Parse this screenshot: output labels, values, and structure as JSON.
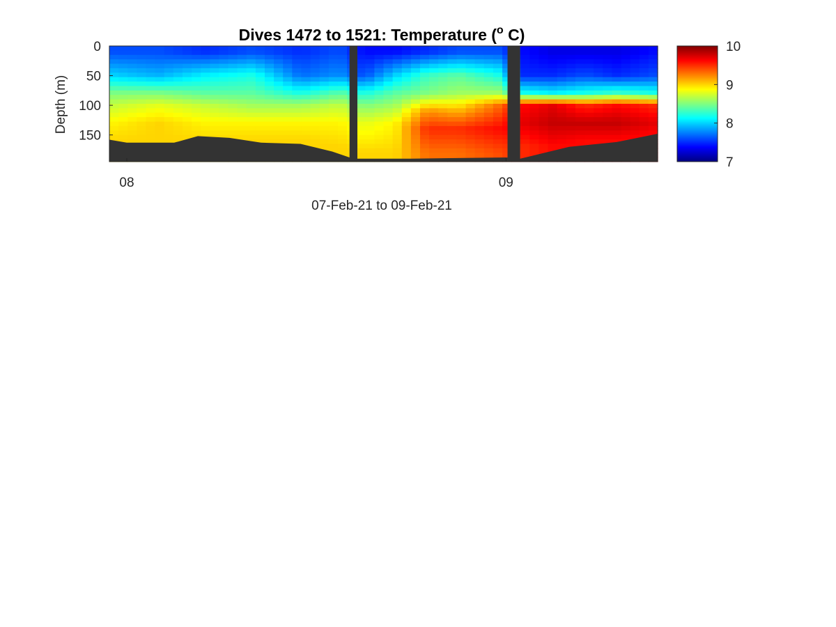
{
  "chart_data": {
    "type": "heatmap",
    "title": "Dives 1472 to 1521: Temperature (",
    "title_superscript": "o",
    "title_end": " C)",
    "xlabel": "07-Feb-21 to 09-Feb-21",
    "ylabel": "Depth (m)",
    "x_unit": "hours since 07-Feb-21 00:00",
    "xlim": [
      22.9,
      57.6
    ],
    "ylim": [
      0,
      195
    ],
    "y_reversed": true,
    "x_ticks": [
      {
        "value": 24,
        "label": "08"
      },
      {
        "value": 48,
        "label": "09"
      }
    ],
    "y_ticks": [
      {
        "value": 0,
        "label": "0"
      },
      {
        "value": 50,
        "label": "50"
      },
      {
        "value": 100,
        "label": "100"
      },
      {
        "value": 150,
        "label": "150"
      }
    ],
    "colorbar": {
      "clim": [
        7,
        10
      ],
      "ticks": [
        {
          "value": 7,
          "label": "7"
        },
        {
          "value": 8,
          "label": "8"
        },
        {
          "value": 9,
          "label": "9"
        },
        {
          "value": 10,
          "label": "10"
        }
      ],
      "colormap": "jet"
    },
    "no_data_color": "#333333",
    "gaps": [
      [
        38.1,
        38.6
      ],
      [
        48.1,
        48.9
      ]
    ],
    "bottom_depth": [
      {
        "x": 22.9,
        "depth": 158
      },
      {
        "x": 24.0,
        "depth": 163
      },
      {
        "x": 27.0,
        "depth": 163
      },
      {
        "x": 28.5,
        "depth": 152
      },
      {
        "x": 30.5,
        "depth": 155
      },
      {
        "x": 32.5,
        "depth": 163
      },
      {
        "x": 35.0,
        "depth": 165
      },
      {
        "x": 37.0,
        "depth": 178
      },
      {
        "x": 38.1,
        "depth": 188
      },
      {
        "x": 38.6,
        "depth": 190
      },
      {
        "x": 42.0,
        "depth": 190
      },
      {
        "x": 48.0,
        "depth": 188
      },
      {
        "x": 48.9,
        "depth": 190
      },
      {
        "x": 50.0,
        "depth": 183
      },
      {
        "x": 52.0,
        "depth": 170
      },
      {
        "x": 55.0,
        "depth": 162
      },
      {
        "x": 57.6,
        "depth": 148
      }
    ],
    "profiles": [
      {
        "x": 23.0,
        "depths": [
          10,
          50,
          80,
          100,
          130,
          160
        ],
        "temps": [
          7.6,
          8.0,
          8.5,
          8.7,
          8.9,
          9.0
        ]
      },
      {
        "x": 26.0,
        "depths": [
          10,
          50,
          80,
          100,
          130,
          160
        ],
        "temps": [
          7.6,
          7.9,
          8.5,
          8.8,
          9.0,
          9.0
        ]
      },
      {
        "x": 29.0,
        "depths": [
          10,
          50,
          80,
          100,
          130,
          160
        ],
        "temps": [
          7.5,
          8.1,
          8.4,
          8.7,
          8.9,
          9.0
        ]
      },
      {
        "x": 32.0,
        "depths": [
          10,
          50,
          80,
          100,
          130,
          160
        ],
        "temps": [
          7.6,
          8.2,
          8.4,
          8.6,
          8.9,
          9.0
        ]
      },
      {
        "x": 35.0,
        "depths": [
          10,
          50,
          80,
          100,
          130,
          160
        ],
        "temps": [
          7.5,
          7.7,
          8.2,
          8.6,
          8.9,
          9.0
        ]
      },
      {
        "x": 37.5,
        "depths": [
          10,
          50,
          80,
          100,
          130,
          170
        ],
        "temps": [
          7.6,
          7.8,
          8.4,
          8.7,
          8.9,
          9.0
        ]
      },
      {
        "x": 39.0,
        "depths": [
          10,
          50,
          80,
          100,
          130,
          180
        ],
        "temps": [
          7.4,
          7.6,
          8.2,
          8.5,
          8.8,
          9.0
        ]
      },
      {
        "x": 41.0,
        "depths": [
          10,
          50,
          80,
          100,
          130,
          180
        ],
        "temps": [
          7.4,
          8.0,
          8.4,
          8.6,
          8.9,
          9.0
        ]
      },
      {
        "x": 43.0,
        "depths": [
          10,
          50,
          80,
          110,
          140,
          180
        ],
        "temps": [
          7.5,
          8.3,
          8.5,
          9.2,
          9.5,
          9.3
        ]
      },
      {
        "x": 45.0,
        "depths": [
          10,
          50,
          80,
          110,
          140,
          180
        ],
        "temps": [
          7.6,
          8.4,
          8.6,
          9.1,
          9.5,
          9.3
        ]
      },
      {
        "x": 47.5,
        "depths": [
          10,
          50,
          80,
          100,
          140,
          180
        ],
        "temps": [
          7.6,
          8.2,
          8.6,
          9.3,
          9.6,
          9.4
        ]
      },
      {
        "x": 49.0,
        "depths": [
          10,
          50,
          80,
          100,
          130,
          170
        ],
        "temps": [
          7.4,
          7.5,
          8.2,
          9.6,
          9.7,
          9.5
        ]
      },
      {
        "x": 51.0,
        "depths": [
          10,
          50,
          80,
          100,
          130,
          170
        ],
        "temps": [
          7.3,
          7.5,
          8.1,
          9.7,
          9.8,
          9.6
        ]
      },
      {
        "x": 53.0,
        "depths": [
          10,
          50,
          80,
          100,
          130,
          160
        ],
        "temps": [
          7.3,
          7.6,
          8.2,
          9.5,
          9.8,
          9.6
        ]
      },
      {
        "x": 55.0,
        "depths": [
          10,
          50,
          80,
          100,
          130,
          160
        ],
        "temps": [
          7.3,
          7.5,
          8.3,
          9.6,
          9.8,
          9.6
        ]
      },
      {
        "x": 57.5,
        "depths": [
          10,
          50,
          80,
          100,
          130,
          150
        ],
        "temps": [
          7.4,
          7.6,
          8.2,
          9.5,
          9.7,
          9.6
        ]
      }
    ]
  }
}
